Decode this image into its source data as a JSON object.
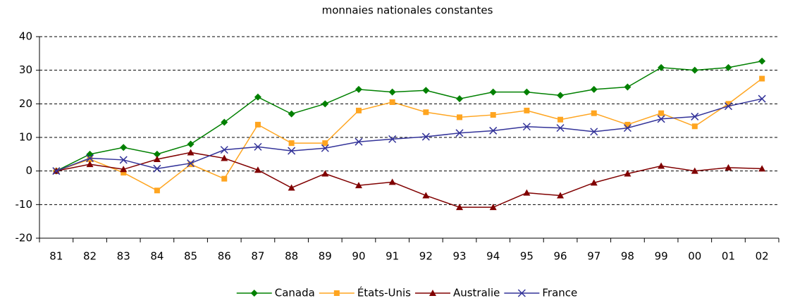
{
  "chart_data": {
    "type": "line",
    "title": "monnaies nationales constantes",
    "categories": [
      "81",
      "82",
      "83",
      "84",
      "85",
      "86",
      "87",
      "88",
      "89",
      "90",
      "91",
      "92",
      "93",
      "94",
      "95",
      "96",
      "97",
      "98",
      "99",
      "00",
      "01",
      "02"
    ],
    "series": [
      {
        "name": "Canada",
        "color": "#008000",
        "marker": "diamond",
        "values": [
          0,
          5,
          7,
          5,
          8,
          14.5,
          22,
          17,
          20,
          24.3,
          23.5,
          24,
          21.5,
          23.5,
          23.5,
          22.5,
          24.3,
          25,
          30.8,
          30,
          30.8,
          32.7
        ]
      },
      {
        "name": "États-Unis",
        "color": "#ffa520",
        "marker": "square",
        "values": [
          0,
          3.5,
          -0.5,
          -5.8,
          2,
          -2.3,
          13.8,
          8.3,
          8.3,
          18,
          20.5,
          17.5,
          16,
          16.7,
          18,
          15.3,
          17.2,
          13.8,
          17.2,
          13.3,
          20,
          27.5
        ]
      },
      {
        "name": "Australie",
        "color": "#800000",
        "marker": "triangle",
        "values": [
          0,
          2,
          0.5,
          3.5,
          5.5,
          3.8,
          0.3,
          -5,
          -0.8,
          -4.3,
          -3.3,
          -7.3,
          -10.8,
          -10.8,
          -6.5,
          -7.3,
          -3.5,
          -0.8,
          1.5,
          0,
          1,
          0.7
        ]
      },
      {
        "name": "France",
        "color": "#333399",
        "marker": "x",
        "values": [
          0,
          3.8,
          3.3,
          0.7,
          2.3,
          6.3,
          7.2,
          6,
          6.8,
          8.7,
          9.5,
          10.2,
          11.3,
          12,
          13.2,
          12.8,
          11.7,
          12.8,
          15.5,
          16.2,
          19.3,
          21.5
        ]
      }
    ],
    "ylim": [
      -20,
      40
    ],
    "yticks": [
      -20,
      -10,
      0,
      10,
      20,
      30,
      40
    ],
    "grid": true,
    "legend": "bottom"
  }
}
